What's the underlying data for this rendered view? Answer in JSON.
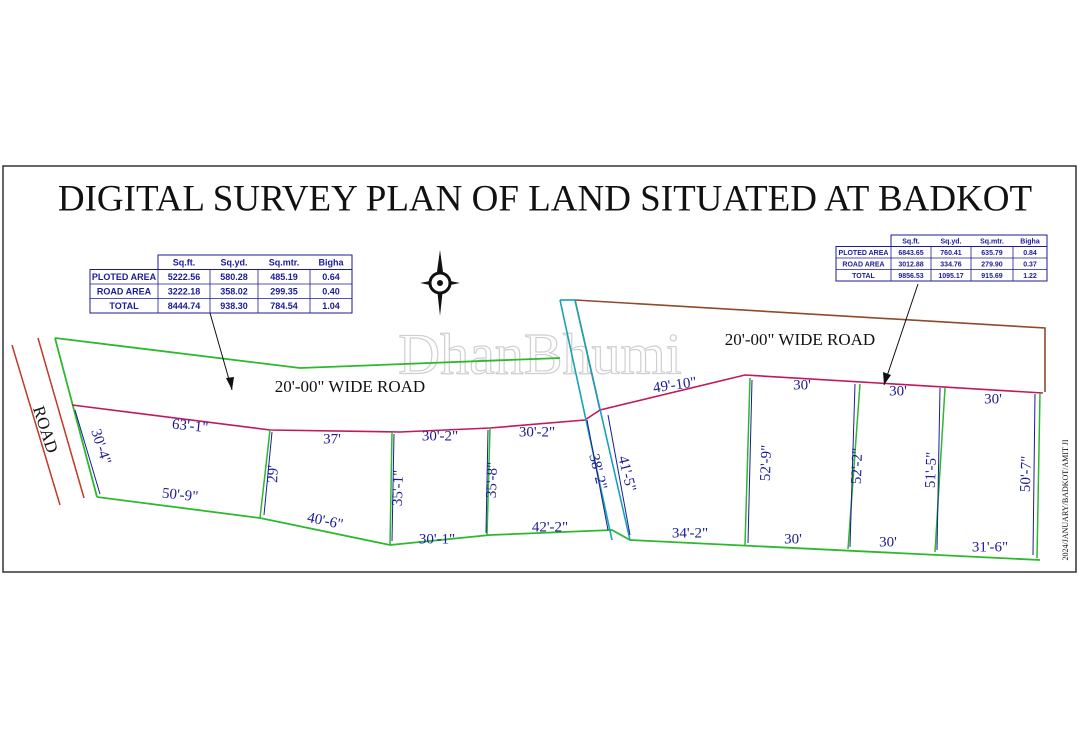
{
  "title": "DIGITAL SURVEY PLAN OF LAND SITUATED AT BADKOT",
  "watermark": "DhanBhumi",
  "road_label": "ROAD",
  "road_labels": [
    "20'-00\" WIDE ROAD",
    "20'-00\" WIDE ROAD"
  ],
  "reference": "2024/JANUARY/BADKOT/AMIT JI",
  "tables": [
    {
      "header": [
        "Sq.ft.",
        "Sq.yd.",
        "Sq.mtr.",
        "Bigha"
      ],
      "rows": [
        [
          "PLOTED AREA",
          "5222.56",
          "580.28",
          "485.19",
          "0.64"
        ],
        [
          "ROAD AREA",
          "3222.18",
          "358.02",
          "299.35",
          "0.40"
        ],
        [
          "TOTAL",
          "8444.74",
          "938.30",
          "784.54",
          "1.04"
        ]
      ]
    },
    {
      "header": [
        "Sq.ft.",
        "Sq.yd.",
        "Sq.mtr.",
        "Bigha"
      ],
      "rows": [
        [
          "PLOTED AREA",
          "6843.65",
          "760.41",
          "635.79",
          "0.84"
        ],
        [
          "ROAD AREA",
          "3012.88",
          "334.76",
          "279.90",
          "0.37"
        ],
        [
          "TOTAL",
          "9856.53",
          "1095.17",
          "915.69",
          "1.22"
        ]
      ]
    }
  ],
  "dimensions": [
    "63'-1\"",
    "37'",
    "30'-2\"",
    "30'-2\"",
    "30'-4\"",
    "50'-9\"",
    "29'",
    "40'-6\"",
    "35'-1\"",
    "35'-8\"",
    "30'-1\"",
    "42'-2\"",
    "38'-2\"",
    "41'-5\"",
    "49'-10\"",
    "30'",
    "30'",
    "30'",
    "52'-9\"",
    "52'-2\"",
    "51'-5\"",
    "50'-7\"",
    "34'-2\"",
    "30'",
    "30'",
    "31'-6\""
  ]
}
